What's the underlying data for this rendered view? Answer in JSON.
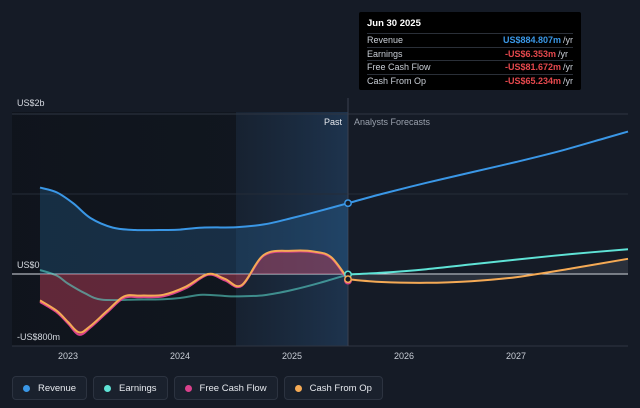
{
  "chart_data": {
    "type": "line",
    "x_axis": {
      "ticks": [
        "2023",
        "2024",
        "2025",
        "2026",
        "2027"
      ]
    },
    "y_axis": {
      "ticks": [
        "US$2b",
        "US$0",
        "-US$800m"
      ],
      "range": [
        -800,
        2000
      ],
      "unit": "US$m"
    },
    "divider": {
      "left_label": "Past",
      "right_label": "Analysts Forecasts",
      "date": "2025-06-30"
    },
    "series": [
      {
        "name": "Revenue",
        "color": "#3a97e6",
        "points": [
          [
            2022.75,
            1080
          ],
          [
            2022.9,
            1020
          ],
          [
            2023.05,
            880
          ],
          [
            2023.2,
            700
          ],
          [
            2023.4,
            580
          ],
          [
            2023.6,
            550
          ],
          [
            2023.85,
            550
          ],
          [
            2024.0,
            555
          ],
          [
            2024.2,
            580
          ],
          [
            2024.5,
            585
          ],
          [
            2024.75,
            620
          ],
          [
            2025.0,
            700
          ],
          [
            2025.25,
            790
          ],
          [
            2025.5,
            885
          ],
          [
            2025.8,
            1000
          ],
          [
            2026.2,
            1140
          ],
          [
            2026.6,
            1270
          ],
          [
            2027.0,
            1400
          ],
          [
            2027.4,
            1540
          ],
          [
            2027.8,
            1700
          ],
          [
            2028.0,
            1780
          ]
        ]
      },
      {
        "name": "Earnings",
        "color": "#5fe3d6",
        "points": [
          [
            2022.75,
            50
          ],
          [
            2022.9,
            -20
          ],
          [
            2023.0,
            -120
          ],
          [
            2023.15,
            -240
          ],
          [
            2023.3,
            -320
          ],
          [
            2023.6,
            -320
          ],
          [
            2023.85,
            -315
          ],
          [
            2024.0,
            -300
          ],
          [
            2024.2,
            -260
          ],
          [
            2024.4,
            -275
          ],
          [
            2024.5,
            -280
          ],
          [
            2024.75,
            -265
          ],
          [
            2025.0,
            -200
          ],
          [
            2025.25,
            -110
          ],
          [
            2025.5,
            -6
          ],
          [
            2025.8,
            15
          ],
          [
            2026.2,
            60
          ],
          [
            2026.6,
            120
          ],
          [
            2027.0,
            180
          ],
          [
            2027.5,
            250
          ],
          [
            2028.0,
            310
          ]
        ]
      },
      {
        "name": "Free Cash Flow",
        "color": "#d9418c",
        "points": [
          [
            2022.75,
            -350
          ],
          [
            2022.9,
            -480
          ],
          [
            2023.0,
            -620
          ],
          [
            2023.1,
            -760
          ],
          [
            2023.2,
            -670
          ],
          [
            2023.35,
            -480
          ],
          [
            2023.5,
            -300
          ],
          [
            2023.65,
            -290
          ],
          [
            2023.85,
            -280
          ],
          [
            2024.05,
            -180
          ],
          [
            2024.25,
            -10
          ],
          [
            2024.4,
            -80
          ],
          [
            2024.55,
            -150
          ],
          [
            2024.75,
            230
          ],
          [
            2025.0,
            280
          ],
          [
            2025.2,
            270
          ],
          [
            2025.35,
            200
          ],
          [
            2025.5,
            -82
          ]
        ]
      },
      {
        "name": "Cash From Op",
        "color": "#f5aa55",
        "points": [
          [
            2022.75,
            -330
          ],
          [
            2022.9,
            -460
          ],
          [
            2023.0,
            -600
          ],
          [
            2023.1,
            -730
          ],
          [
            2023.2,
            -650
          ],
          [
            2023.35,
            -460
          ],
          [
            2023.5,
            -280
          ],
          [
            2023.65,
            -270
          ],
          [
            2023.85,
            -260
          ],
          [
            2024.05,
            -160
          ],
          [
            2024.25,
            0
          ],
          [
            2024.4,
            -60
          ],
          [
            2024.55,
            -140
          ],
          [
            2024.75,
            240
          ],
          [
            2025.0,
            290
          ],
          [
            2025.2,
            280
          ],
          [
            2025.35,
            210
          ],
          [
            2025.5,
            -65
          ],
          [
            2025.8,
            -100
          ],
          [
            2026.2,
            -110
          ],
          [
            2026.6,
            -90
          ],
          [
            2027.0,
            -40
          ],
          [
            2027.5,
            70
          ],
          [
            2028.0,
            190
          ]
        ]
      }
    ]
  },
  "tooltip": {
    "date": "Jun 30 2025",
    "rows": [
      {
        "label": "Revenue",
        "value": "US$884.807m",
        "unit": "/yr",
        "color": "#3a97e6"
      },
      {
        "label": "Earnings",
        "value": "-US$6.353m",
        "unit": "/yr",
        "color": "#e5484d"
      },
      {
        "label": "Free Cash Flow",
        "value": "-US$81.672m",
        "unit": "/yr",
        "color": "#e5484d"
      },
      {
        "label": "Cash From Op",
        "value": "-US$65.234m",
        "unit": "/yr",
        "color": "#e5484d"
      }
    ]
  },
  "legend": [
    {
      "label": "Revenue",
      "color": "#3a97e6"
    },
    {
      "label": "Earnings",
      "color": "#5fe3d6"
    },
    {
      "label": "Free Cash Flow",
      "color": "#d9418c"
    },
    {
      "label": "Cash From Op",
      "color": "#f5aa55"
    }
  ]
}
